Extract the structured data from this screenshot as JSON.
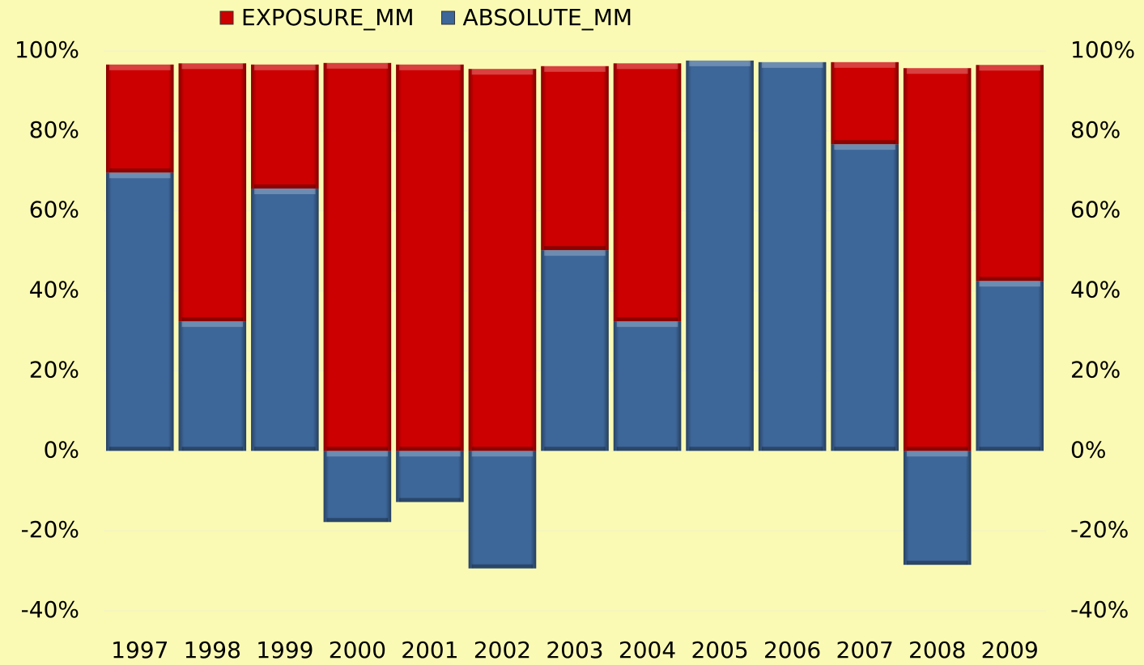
{
  "chart_data": {
    "type": "stacked_bar",
    "categories": [
      "1997",
      "1998",
      "1999",
      "2000",
      "2001",
      "2002",
      "2003",
      "2004",
      "2005",
      "2006",
      "2007",
      "2008",
      "2009"
    ],
    "series": [
      {
        "name": "EXPOSURE_MM",
        "color": "#cc0000",
        "values": [
          27,
          64.5,
          31,
          97,
          96.6,
          95.5,
          46,
          64.5,
          0,
          0,
          20.5,
          95.7,
          54
        ]
      },
      {
        "name": "ABSOLUTE_MM",
        "color": "#3d6699",
        "values": [
          69.6,
          32.4,
          65.6,
          -17.8,
          -12.8,
          -29.4,
          50.2,
          32.4,
          97.6,
          97.2,
          76.7,
          -28.5,
          42.5
        ]
      }
    ],
    "ylim": [
      -40,
      100
    ],
    "yticks": [
      {
        "value": -40,
        "label": "-40%"
      },
      {
        "value": -20,
        "label": "-20%"
      },
      {
        "value": 0,
        "label": "0%"
      },
      {
        "value": 20,
        "label": "20%"
      },
      {
        "value": 40,
        "label": "40%"
      },
      {
        "value": 60,
        "label": "60%"
      },
      {
        "value": 80,
        "label": "80%"
      },
      {
        "value": 100,
        "label": "100%"
      }
    ],
    "y2lim": [
      -40,
      100
    ],
    "y2ticks": [
      {
        "value": -40,
        "label": "-40%"
      },
      {
        "value": -20,
        "label": "-20%"
      },
      {
        "value": 0,
        "label": "0%"
      },
      {
        "value": 20,
        "label": "20%"
      },
      {
        "value": 40,
        "label": "40%"
      },
      {
        "value": 60,
        "label": "60%"
      },
      {
        "value": 80,
        "label": "80%"
      },
      {
        "value": 100,
        "label": "100%"
      }
    ],
    "grid": true,
    "legend": "top"
  }
}
